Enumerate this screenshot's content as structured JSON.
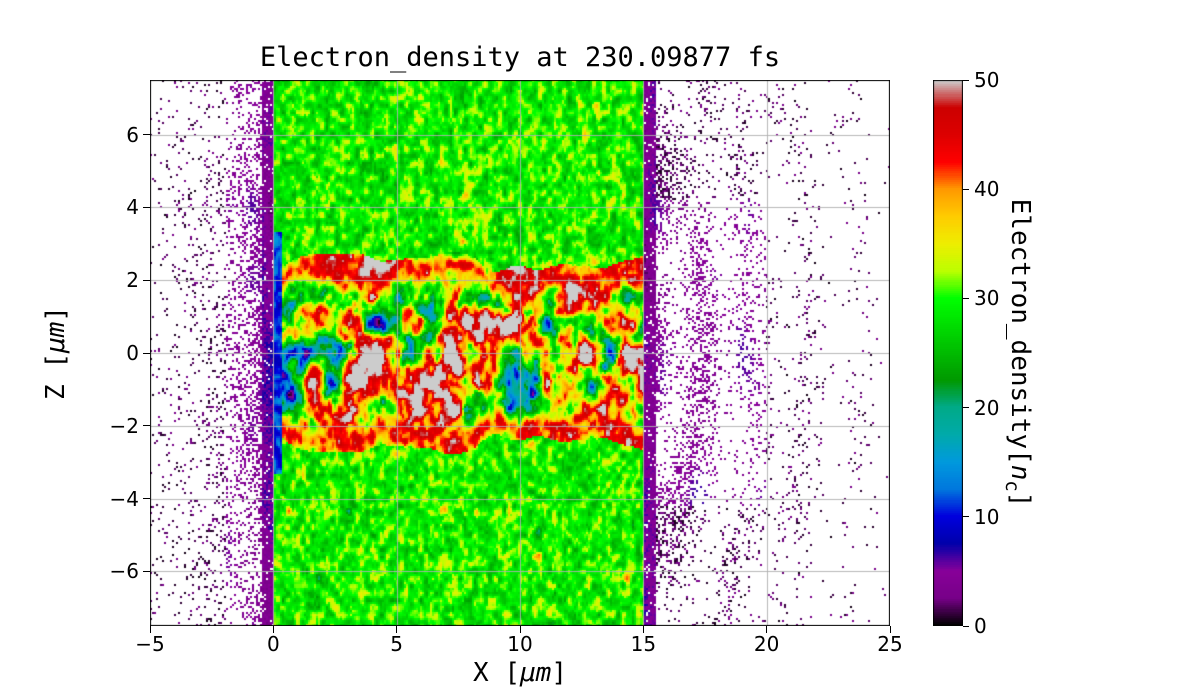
{
  "chart_data": {
    "type": "heatmap",
    "title": "Electron_density at 230.09877 fs",
    "xlabel": "X [μm]",
    "ylabel": "Z [μm]",
    "x_range": [
      -5,
      25
    ],
    "z_range": [
      -7.5,
      7.5
    ],
    "x_ticks": [
      -5,
      0,
      5,
      10,
      15,
      20,
      25
    ],
    "z_ticks": [
      -6,
      -4,
      -2,
      0,
      2,
      4,
      6
    ],
    "grid": true,
    "grid_color": "#b0b0b0",
    "colormap": "nipy_spectral",
    "colormap_stops": [
      [
        0.0,
        "#000000"
      ],
      [
        0.05,
        "#770088"
      ],
      [
        0.1,
        "#880099"
      ],
      [
        0.15,
        "#0000aa"
      ],
      [
        0.2,
        "#0000dd"
      ],
      [
        0.25,
        "#0077dd"
      ],
      [
        0.3,
        "#0099dd"
      ],
      [
        0.35,
        "#00aaaa"
      ],
      [
        0.4,
        "#00aa88"
      ],
      [
        0.45,
        "#009900"
      ],
      [
        0.5,
        "#00bb00"
      ],
      [
        0.55,
        "#00dd00"
      ],
      [
        0.6,
        "#00ff00"
      ],
      [
        0.65,
        "#bbff00"
      ],
      [
        0.7,
        "#eeee00"
      ],
      [
        0.75,
        "#ffcc00"
      ],
      [
        0.8,
        "#ff9900"
      ],
      [
        0.85,
        "#ff0000"
      ],
      [
        0.9,
        "#dd0000"
      ],
      [
        0.95,
        "#cc0000"
      ],
      [
        1.0,
        "#cccccc"
      ]
    ],
    "colorbar": {
      "label": "Electron_density[n_c]",
      "range": [
        0,
        50
      ],
      "ticks": [
        0,
        10,
        20,
        30,
        40,
        50
      ]
    },
    "regions": {
      "plasma_slab": {
        "x_range_um": [
          0,
          15
        ],
        "mean_density_nc": 30,
        "texture_amplitude_nc": 7
      },
      "heated_channel": {
        "z_halfwidth_um": 2.5,
        "density_range_nc": [
          5,
          50
        ],
        "hot_rim_density_nc": 45
      },
      "left_vacuum": {
        "x_range_um": [
          -5,
          0
        ],
        "speckle_density_nc": [
          0,
          8
        ],
        "dense_edge_width_um": 0.5
      },
      "right_expansion": {
        "x_range_um": [
          15,
          25
        ],
        "speckle_density_nc": [
          0,
          8
        ],
        "dense_edge_width_um": 0.5
      }
    },
    "render_seed": 7
  },
  "labels": {
    "xlabel_prefix": "X [",
    "xlabel_unit": "μm",
    "xlabel_suffix": "]",
    "ylabel_prefix": "Z [",
    "ylabel_unit": "μm",
    "ylabel_suffix": "]",
    "cbar_main": "Electron_density[",
    "cbar_var": "n",
    "cbar_sub": "c",
    "cbar_close": "]"
  }
}
